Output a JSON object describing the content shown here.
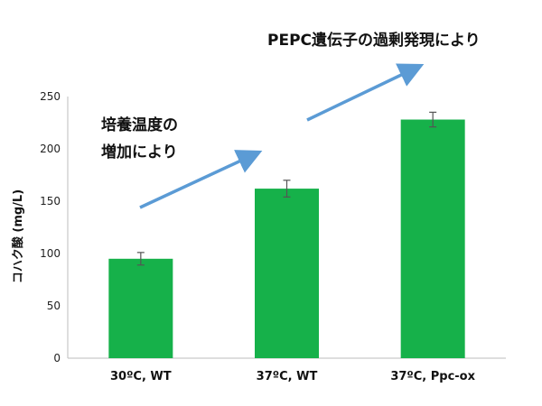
{
  "chart_data": {
    "type": "bar",
    "title": "",
    "xlabel": "",
    "ylabel": "コハク酸 (mg/L)",
    "categories": [
      "30ºC, WT",
      "37ºC, WT",
      "37ºC, Ppc-ox"
    ],
    "values": [
      95,
      162,
      228
    ],
    "error": [
      6,
      8,
      7
    ],
    "ylim": [
      0,
      250
    ],
    "yticks": [
      0,
      50,
      100,
      150,
      200,
      250
    ],
    "bar_color": "#16b14a",
    "arrow_color": "#5b9bd5",
    "grid": false,
    "legend": "none",
    "annotations": {
      "top": "PEPC遺伝子の過剰発現により",
      "mid_line1": "培養温度の",
      "mid_line2": "増加により"
    }
  }
}
